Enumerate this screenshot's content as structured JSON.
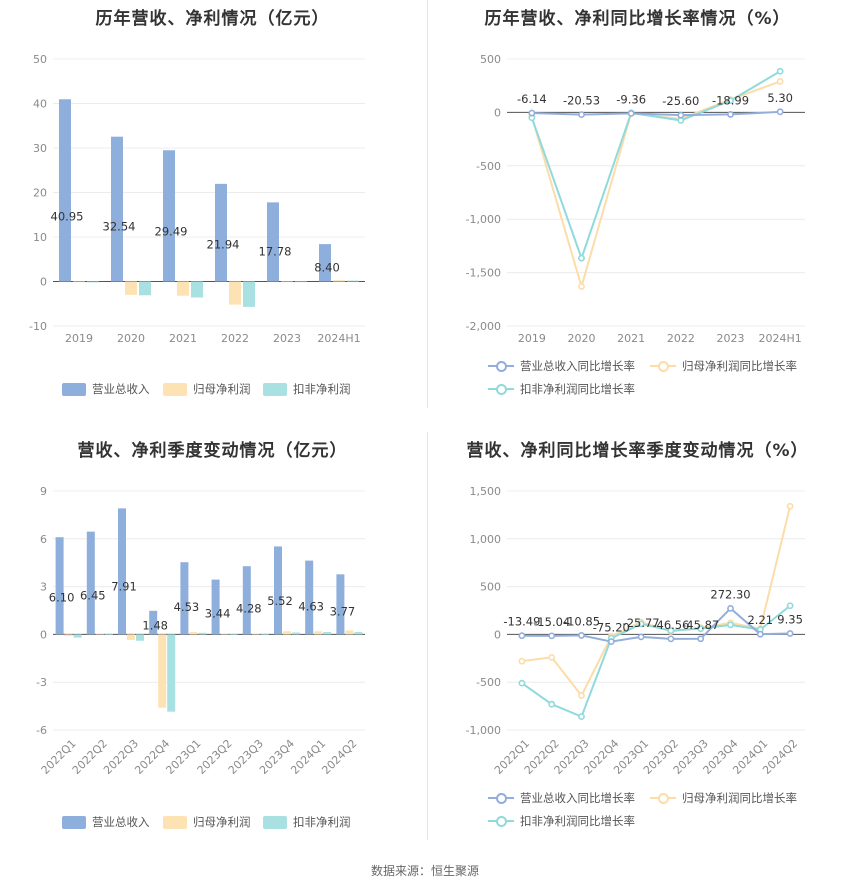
{
  "source_text": "数据来源：恒生聚源",
  "colors": {
    "revenue": "#8eaedb",
    "parent_profit": "#fde3b4",
    "deducted_profit": "#a9e1e3",
    "rev_growth_line": "#92aedc",
    "parent_growth_line": "#fcdca8",
    "deducted_growth_line": "#8fdadc"
  },
  "chart_data": [
    {
      "type": "bar",
      "title": "历年营收、净利情况（亿元）",
      "categories": [
        "2019",
        "2020",
        "2021",
        "2022",
        "2023",
        "2024H1"
      ],
      "y_ticks": [
        "50",
        "40",
        "30",
        "20",
        "10",
        "0",
        "-10"
      ],
      "ylim": [
        -10,
        50
      ],
      "series": [
        {
          "name": "营业总收入",
          "values": [
            40.95,
            32.54,
            29.49,
            21.94,
            17.78,
            8.4
          ],
          "labels": [
            "40.95",
            "32.54",
            "29.49",
            "21.94",
            "17.78",
            "8.40"
          ]
        },
        {
          "name": "归母净利润",
          "values": [
            0,
            -3.0,
            -3.2,
            -5.2,
            0,
            0.3
          ]
        },
        {
          "name": "扣非净利润",
          "values": [
            -0.2,
            -3.1,
            -3.6,
            -5.7,
            0,
            0.2
          ]
        }
      ],
      "legend_position": "bottom"
    },
    {
      "type": "line",
      "title": "历年营收、净利同比增长率情况（%）",
      "categories": [
        "2019",
        "2020",
        "2021",
        "2022",
        "2023",
        "2024H1"
      ],
      "y_ticks": [
        "500",
        "0",
        "-500",
        "-1,000",
        "-1,500",
        "-2,000"
      ],
      "ylim": [
        -2000,
        500
      ],
      "series": [
        {
          "name": "营业总收入同比增长率",
          "values": [
            -6.14,
            -20.53,
            -9.36,
            -25.6,
            -18.99,
            5.3
          ],
          "labels": [
            "-6.14",
            "-20.53",
            "-9.36",
            "-25.60",
            "-18.99",
            "5.30"
          ]
        },
        {
          "name": "归母净利润同比增长率",
          "values": [
            -40,
            -1630,
            -10,
            -60,
            120,
            290
          ]
        },
        {
          "name": "扣非净利润同比增长率",
          "values": [
            -50,
            -1365,
            -5,
            -75,
            110,
            385
          ]
        }
      ],
      "legend_position": "bottom"
    },
    {
      "type": "bar",
      "title": "营收、净利季度变动情况（亿元）",
      "categories": [
        "2022Q1",
        "2022Q2",
        "2022Q3",
        "2022Q4",
        "2023Q1",
        "2023Q2",
        "2023Q3",
        "2023Q4",
        "2024Q1",
        "2024Q2"
      ],
      "y_ticks": [
        "9",
        "6",
        "3",
        "0",
        "-3",
        "-6"
      ],
      "ylim": [
        -6,
        9
      ],
      "series": [
        {
          "name": "营业总收入",
          "values": [
            6.1,
            6.45,
            7.91,
            1.48,
            4.53,
            3.44,
            4.28,
            5.52,
            4.63,
            3.77
          ],
          "labels": [
            "6.10",
            "6.45",
            "7.91",
            "1.48",
            "4.53",
            "3.44",
            "4.28",
            "5.52",
            "4.63",
            "3.77"
          ]
        },
        {
          "name": "归母净利润",
          "values": [
            -0.1,
            0.05,
            -0.35,
            -4.6,
            0.15,
            0.05,
            0.05,
            0.2,
            0.2,
            0.25
          ]
        },
        {
          "name": "扣非净利润",
          "values": [
            -0.2,
            0.02,
            -0.4,
            -4.85,
            0.1,
            0.02,
            0.02,
            0.12,
            0.15,
            0.15
          ]
        }
      ],
      "legend_position": "bottom"
    },
    {
      "type": "line",
      "title": "营收、净利同比增长率季度变动情况（%）",
      "categories": [
        "2022Q1",
        "2022Q2",
        "2022Q3",
        "2022Q4",
        "2023Q1",
        "2023Q2",
        "2023Q3",
        "2023Q4",
        "2024Q1",
        "2024Q2"
      ],
      "y_ticks": [
        "1,500",
        "1,000",
        "500",
        "0",
        "-500",
        "-1,000"
      ],
      "ylim": [
        -1000,
        1500
      ],
      "series": [
        {
          "name": "营业总收入同比增长率",
          "values": [
            -13.49,
            -15.04,
            -10.85,
            -75.2,
            -25.77,
            -46.56,
            -45.87,
            272.3,
            2.21,
            9.35
          ],
          "labels": [
            "-13.49",
            "-15.04",
            "-10.85",
            "-75.20",
            "-25.77",
            "-46.56",
            "-45.87",
            "272.30",
            "2.21",
            "9.35"
          ]
        },
        {
          "name": "归母净利润同比增长率",
          "values": [
            -280,
            -240,
            -640,
            -20,
            130,
            30,
            70,
            120,
            60,
            1340
          ]
        },
        {
          "name": "扣非净利润同比增长率",
          "values": [
            -510,
            -730,
            -860,
            -40,
            110,
            40,
            60,
            100,
            50,
            300
          ]
        }
      ],
      "legend_position": "bottom"
    }
  ]
}
